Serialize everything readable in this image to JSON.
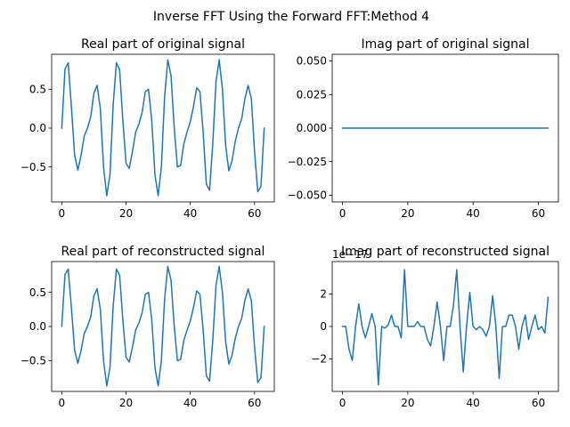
{
  "figure": {
    "suptitle": "Inverse FFT Using the Forward FFT:Method 4"
  },
  "chart_data": [
    {
      "type": "line",
      "title": "Real part of original signal",
      "xlabel": "",
      "ylabel": "",
      "xlim": [
        -3.15,
        66.15
      ],
      "ylim": [
        -0.95,
        0.95
      ],
      "xticks": [
        0,
        20,
        40,
        60
      ],
      "xtick_labels": [
        "0",
        "20",
        "40",
        "60"
      ],
      "yticks": [
        -0.5,
        0.0,
        0.5
      ],
      "ytick_labels": [
        "−0.5",
        "0.0",
        "0.5"
      ],
      "offset_text": "",
      "grid": false,
      "line_color": "#1f77b4",
      "x": [
        0,
        1,
        2,
        3,
        4,
        5,
        6,
        7,
        8,
        9,
        10,
        11,
        12,
        13,
        14,
        15,
        16,
        17,
        18,
        19,
        20,
        21,
        22,
        23,
        24,
        25,
        26,
        27,
        28,
        29,
        30,
        31,
        32,
        33,
        34,
        35,
        36,
        37,
        38,
        39,
        40,
        41,
        42,
        43,
        44,
        45,
        46,
        47,
        48,
        49,
        50,
        51,
        52,
        53,
        54,
        55,
        56,
        57,
        58,
        59,
        60,
        61,
        62,
        63
      ],
      "y": [
        0.0,
        0.76,
        0.84,
        0.27,
        -0.35,
        -0.54,
        -0.35,
        -0.1,
        0.0,
        0.14,
        0.45,
        0.55,
        0.25,
        -0.5,
        -0.87,
        -0.6,
        0.3,
        0.84,
        0.75,
        0.1,
        -0.45,
        -0.52,
        -0.3,
        -0.05,
        0.05,
        0.2,
        0.47,
        0.5,
        0.1,
        -0.6,
        -0.87,
        -0.5,
        0.4,
        0.88,
        0.68,
        0.0,
        -0.5,
        -0.48,
        -0.2,
        -0.05,
        0.08,
        0.28,
        0.52,
        0.47,
        -0.05,
        -0.72,
        -0.8,
        -0.2,
        0.6,
        0.88,
        0.5,
        -0.22,
        -0.55,
        -0.42,
        -0.17,
        0.0,
        0.12,
        0.38,
        0.55,
        0.38,
        -0.3,
        -0.82,
        -0.75,
        0.0
      ]
    },
    {
      "type": "line",
      "title": "Imag part of original signal",
      "xlabel": "",
      "ylabel": "",
      "xlim": [
        -3.15,
        66.15
      ],
      "ylim": [
        -0.055,
        0.055
      ],
      "xticks": [
        0,
        20,
        40,
        60
      ],
      "xtick_labels": [
        "0",
        "20",
        "40",
        "60"
      ],
      "yticks": [
        -0.05,
        -0.025,
        0.0,
        0.025,
        0.05
      ],
      "ytick_labels": [
        "−0.050",
        "−0.025",
        "0.000",
        "0.025",
        "0.050"
      ],
      "offset_text": "",
      "grid": false,
      "line_color": "#1f77b4",
      "x": [
        0,
        63
      ],
      "y": [
        0,
        0
      ]
    },
    {
      "type": "line",
      "title": "Real part of reconstructed signal",
      "xlabel": "",
      "ylabel": "",
      "xlim": [
        -3.15,
        66.15
      ],
      "ylim": [
        -0.95,
        0.95
      ],
      "xticks": [
        0,
        20,
        40,
        60
      ],
      "xtick_labels": [
        "0",
        "20",
        "40",
        "60"
      ],
      "yticks": [
        -0.5,
        0.0,
        0.5
      ],
      "ytick_labels": [
        "−0.5",
        "0.0",
        "0.5"
      ],
      "offset_text": "",
      "grid": false,
      "line_color": "#1f77b4",
      "x": [
        0,
        1,
        2,
        3,
        4,
        5,
        6,
        7,
        8,
        9,
        10,
        11,
        12,
        13,
        14,
        15,
        16,
        17,
        18,
        19,
        20,
        21,
        22,
        23,
        24,
        25,
        26,
        27,
        28,
        29,
        30,
        31,
        32,
        33,
        34,
        35,
        36,
        37,
        38,
        39,
        40,
        41,
        42,
        43,
        44,
        45,
        46,
        47,
        48,
        49,
        50,
        51,
        52,
        53,
        54,
        55,
        56,
        57,
        58,
        59,
        60,
        61,
        62,
        63
      ],
      "y": [
        0.0,
        0.76,
        0.84,
        0.27,
        -0.35,
        -0.54,
        -0.35,
        -0.1,
        0.0,
        0.14,
        0.45,
        0.55,
        0.25,
        -0.5,
        -0.87,
        -0.6,
        0.3,
        0.84,
        0.75,
        0.1,
        -0.45,
        -0.52,
        -0.3,
        -0.05,
        0.05,
        0.2,
        0.47,
        0.5,
        0.1,
        -0.6,
        -0.87,
        -0.5,
        0.4,
        0.88,
        0.68,
        0.0,
        -0.5,
        -0.48,
        -0.2,
        -0.05,
        0.08,
        0.28,
        0.52,
        0.47,
        -0.05,
        -0.72,
        -0.8,
        -0.2,
        0.6,
        0.88,
        0.5,
        -0.22,
        -0.55,
        -0.42,
        -0.17,
        0.0,
        0.12,
        0.38,
        0.55,
        0.38,
        -0.3,
        -0.82,
        -0.75,
        0.0
      ]
    },
    {
      "type": "line",
      "title": "Imag part of reconstructed signal",
      "xlabel": "",
      "ylabel": "",
      "xlim": [
        -3.15,
        66.15
      ],
      "ylim": [
        -4.0,
        4.0
      ],
      "xticks": [
        0,
        20,
        40,
        60
      ],
      "xtick_labels": [
        "0",
        "20",
        "40",
        "60"
      ],
      "yticks": [
        -2,
        0,
        2
      ],
      "ytick_labels": [
        "−2",
        "0",
        "2"
      ],
      "offset_text": "1e−17",
      "grid": false,
      "line_color": "#1f77b4",
      "x": [
        0,
        1,
        2,
        3,
        4,
        5,
        6,
        7,
        8,
        9,
        10,
        11,
        12,
        13,
        14,
        15,
        16,
        17,
        18,
        19,
        20,
        21,
        22,
        23,
        24,
        25,
        26,
        27,
        28,
        29,
        30,
        31,
        32,
        33,
        34,
        35,
        36,
        37,
        38,
        39,
        40,
        41,
        42,
        43,
        44,
        45,
        46,
        47,
        48,
        49,
        50,
        51,
        52,
        53,
        54,
        55,
        56,
        57,
        58,
        59,
        60,
        61,
        62,
        63
      ],
      "y": [
        0.0,
        0.0,
        -1.4,
        -2.1,
        0.0,
        1.4,
        0.0,
        -0.7,
        0.0,
        0.8,
        0.0,
        -3.6,
        0.0,
        -0.1,
        0.1,
        0.7,
        0.0,
        0.0,
        -0.7,
        3.5,
        0.0,
        0.0,
        0.0,
        0.3,
        0.0,
        0.0,
        -0.8,
        -1.2,
        0.0,
        1.5,
        0.0,
        -2.1,
        0.0,
        0.0,
        1.3,
        3.5,
        0.0,
        -2.8,
        0.0,
        2.1,
        0.0,
        -0.2,
        0.0,
        -0.2,
        -0.6,
        0.0,
        1.9,
        0.0,
        -3.2,
        0.0,
        0.0,
        0.7,
        0.7,
        0.0,
        -1.4,
        0.0,
        0.7,
        -0.8,
        0.0,
        0.7,
        -0.2,
        0.0,
        -0.4,
        1.8
      ]
    }
  ]
}
